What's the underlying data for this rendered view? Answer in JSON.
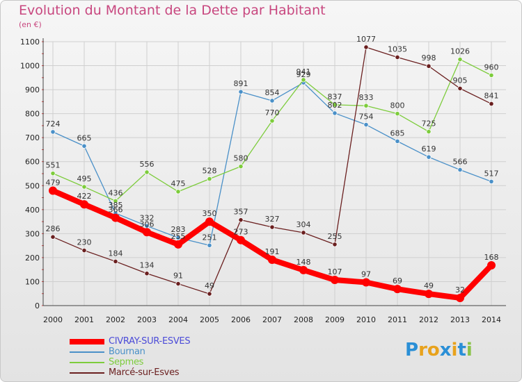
{
  "title": "Evolution du Montant de la Dette par Habitant",
  "unit": "(en €)",
  "logo": {
    "text": "Proxiti",
    "letters": [
      {
        "ch": "P",
        "color": "#2a8fd6"
      },
      {
        "ch": "r",
        "color": "#e8a21c"
      },
      {
        "ch": "o",
        "color": "#e8a21c"
      },
      {
        "ch": "x",
        "color": "#2a8fd6"
      },
      {
        "ch": "i",
        "color": "#e8a21c"
      },
      {
        "ch": "t",
        "color": "#2a8fd6"
      },
      {
        "ch": "i",
        "color": "#8bc34a"
      }
    ]
  },
  "chart_data": {
    "type": "line",
    "title": "Evolution du Montant de la Dette par Habitant",
    "ylabel": "(en €)",
    "xlabel": "",
    "ylim": [
      0,
      1100
    ],
    "yticks": [
      0,
      100,
      200,
      300,
      400,
      500,
      600,
      700,
      800,
      900,
      1000,
      1100
    ],
    "grid": true,
    "legend_position": "bottom-left",
    "x": [
      "2000",
      "2001",
      "2002",
      "2003",
      "2004",
      "2005",
      "2006",
      "2007",
      "2008",
      "2009",
      "2010",
      "2011",
      "2012",
      "2013",
      "2014"
    ],
    "series": [
      {
        "name": "Bournan",
        "color": "#4a90c8",
        "text_color": "#4a90c8",
        "values": [
          724,
          665,
          385,
          332,
          283,
          251,
          891,
          854,
          929,
          802,
          754,
          685,
          619,
          566,
          517
        ]
      },
      {
        "name": "Sepmes",
        "color": "#7dcc3c",
        "text_color": "#7dcc3c",
        "values": [
          551,
          495,
          436,
          556,
          475,
          528,
          580,
          770,
          941,
          837,
          833,
          800,
          725,
          1026,
          960
        ]
      },
      {
        "name": "Marcé-sur-Esves",
        "color": "#6a1f1f",
        "text_color": "#6a1f1f",
        "values": [
          286,
          230,
          184,
          134,
          91,
          49,
          357,
          327,
          304,
          255,
          1077,
          1035,
          998,
          905,
          841
        ]
      },
      {
        "name": "CIVRAY-SUR-ESVES",
        "color": "#ff0000",
        "text_color": "#4b4bd8",
        "values": [
          479,
          422,
          366,
          306,
          255,
          350,
          273,
          191,
          148,
          107,
          97,
          69,
          49,
          32,
          168
        ]
      }
    ]
  }
}
